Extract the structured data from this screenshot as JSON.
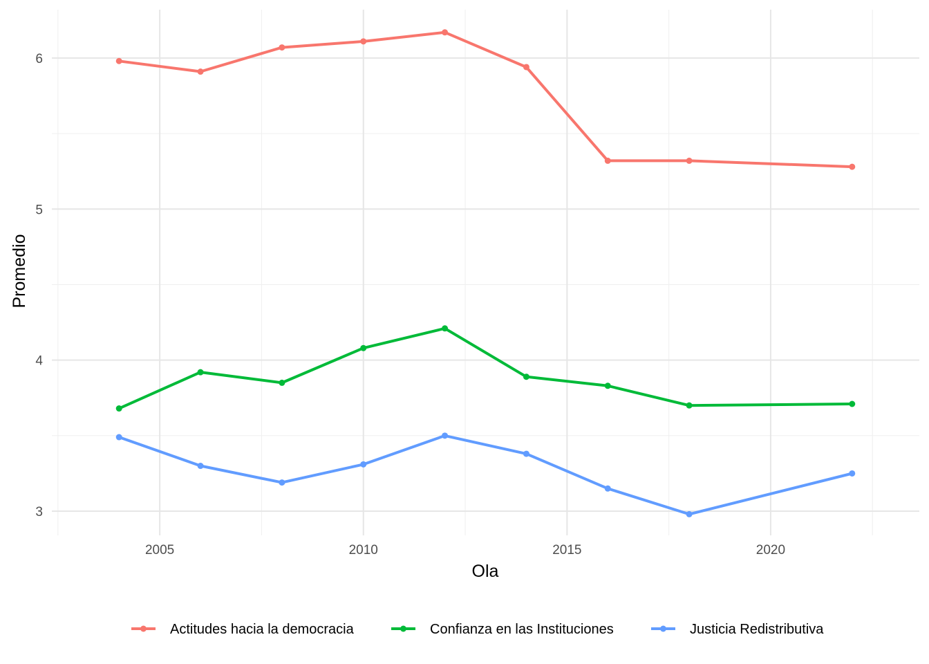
{
  "chart_data": {
    "type": "line",
    "title": "",
    "xlabel": "Ola",
    "ylabel": "Promedio",
    "x": [
      2004,
      2006,
      2008,
      2010,
      2012,
      2014,
      2016,
      2018,
      2022
    ],
    "xlim": [
      2002.35,
      2023.65
    ],
    "ylim": [
      2.84,
      6.32
    ],
    "x_major_ticks": [
      2005,
      2010,
      2015,
      2020
    ],
    "x_tick_labels": [
      "2005",
      "2010",
      "2015",
      "2020"
    ],
    "y_major_ticks": [
      3,
      4,
      5,
      6
    ],
    "y_tick_labels": [
      "3",
      "4",
      "5",
      "6"
    ],
    "grid": true,
    "legend_position": "bottom",
    "series": [
      {
        "name": "Actitudes hacia la democracia",
        "color": "#F8766D",
        "values": [
          5.98,
          5.91,
          6.07,
          6.11,
          6.17,
          5.94,
          5.32,
          5.32,
          5.28
        ]
      },
      {
        "name": "Confianza en las Instituciones",
        "color": "#00BA38",
        "values": [
          3.68,
          3.92,
          3.85,
          4.08,
          4.21,
          3.89,
          3.83,
          3.7,
          3.71
        ]
      },
      {
        "name": "Justicia Redistributiva",
        "color": "#619CFF",
        "values": [
          3.49,
          3.3,
          3.19,
          3.31,
          3.5,
          3.38,
          3.15,
          2.98,
          3.25
        ]
      }
    ]
  }
}
